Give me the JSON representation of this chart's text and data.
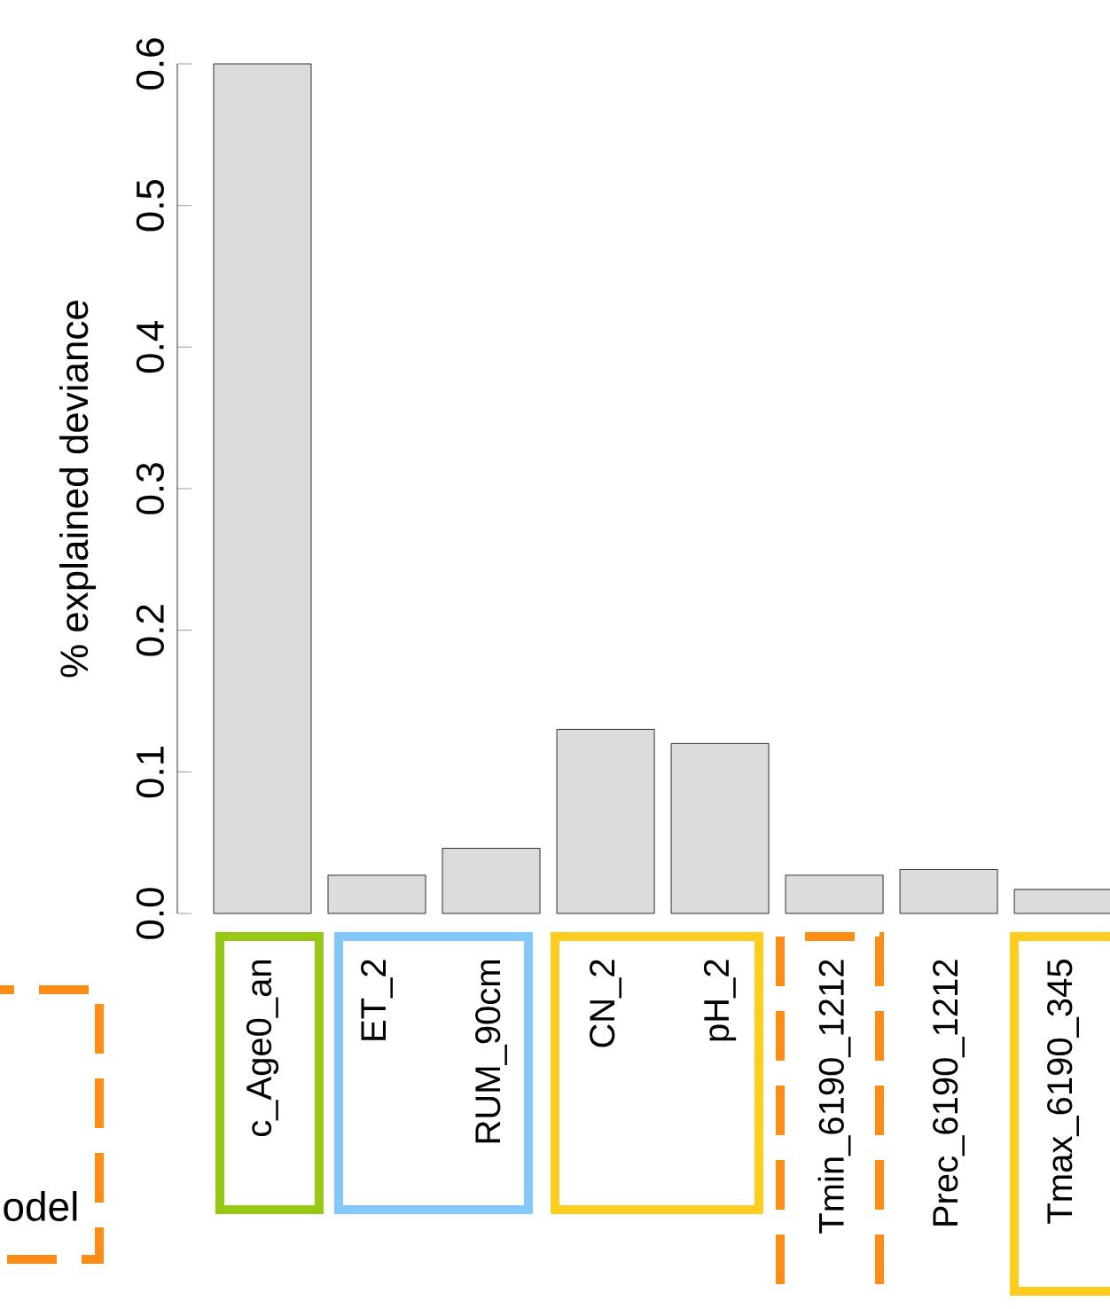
{
  "chart_data": {
    "type": "bar",
    "ylabel": "% explained deviance",
    "categories": [
      "c_Age0_an",
      "ET_2",
      "RUM_90cm",
      "CN_2",
      "pH_2",
      "Tmin_6190_1212",
      "Prec_6190_1212",
      "Tmax_6190_345"
    ],
    "values": [
      0.6,
      0.027,
      0.046,
      0.13,
      0.12,
      0.027,
      0.031,
      0.017
    ],
    "color": "#dcdcdc",
    "ylim": [
      0,
      0.6
    ],
    "yticks": [
      {
        "value": 0,
        "label": "0.0"
      },
      0.1,
      0.2,
      0.3,
      0.4,
      0.5,
      0.6
    ],
    "grid": false,
    "annotations": [
      "odel"
    ]
  }
}
